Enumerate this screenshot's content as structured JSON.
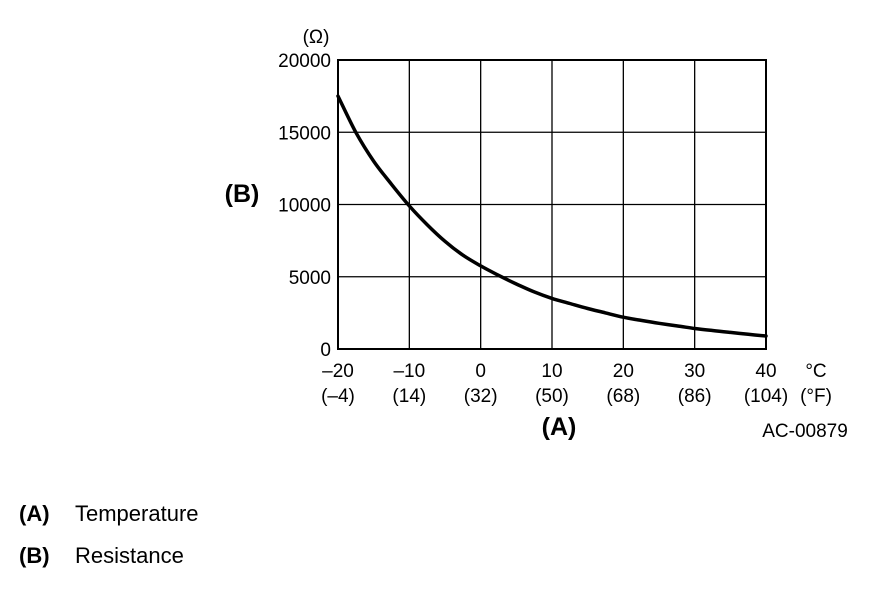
{
  "chart_data": {
    "type": "line",
    "ylabel": "(B)",
    "yunit": "(Ω)",
    "xlabel": "(A)",
    "xunit_c": "°C",
    "xunit_f": "(°F)",
    "xlim": [
      -20,
      40
    ],
    "ylim": [
      0,
      20000
    ],
    "grid": true,
    "x_ticks": [
      {
        "c": "–20",
        "f": "(–4)"
      },
      {
        "c": "–10",
        "f": "(14)"
      },
      {
        "c": "0",
        "f": "(32)"
      },
      {
        "c": "10",
        "f": "(50)"
      },
      {
        "c": "20",
        "f": "(68)"
      },
      {
        "c": "30",
        "f": "(86)"
      },
      {
        "c": "40",
        "f": "(104)"
      }
    ],
    "y_ticks": [
      "0",
      "5000",
      "10000",
      "15000",
      "20000"
    ],
    "series": [
      {
        "x": [
          -20,
          -17.5,
          -15,
          -12.5,
          -10,
          -7.5,
          -5,
          -2.5,
          0,
          2.5,
          5,
          7.5,
          10,
          12.5,
          15,
          17.5,
          20,
          22.5,
          25,
          27.5,
          30,
          32.5,
          35,
          37.5,
          40
        ],
        "values": [
          17500,
          15000,
          13000,
          11400,
          9900,
          8600,
          7450,
          6500,
          5750,
          5100,
          4500,
          3950,
          3500,
          3150,
          2800,
          2500,
          2200,
          1980,
          1780,
          1600,
          1420,
          1280,
          1150,
          1020,
          900
        ],
        "color": "#000000"
      }
    ],
    "figure_id": "AC-00879"
  },
  "legend": [
    {
      "key": "(A)",
      "text": "Temperature"
    },
    {
      "key": "(B)",
      "text": "Resistance"
    }
  ]
}
